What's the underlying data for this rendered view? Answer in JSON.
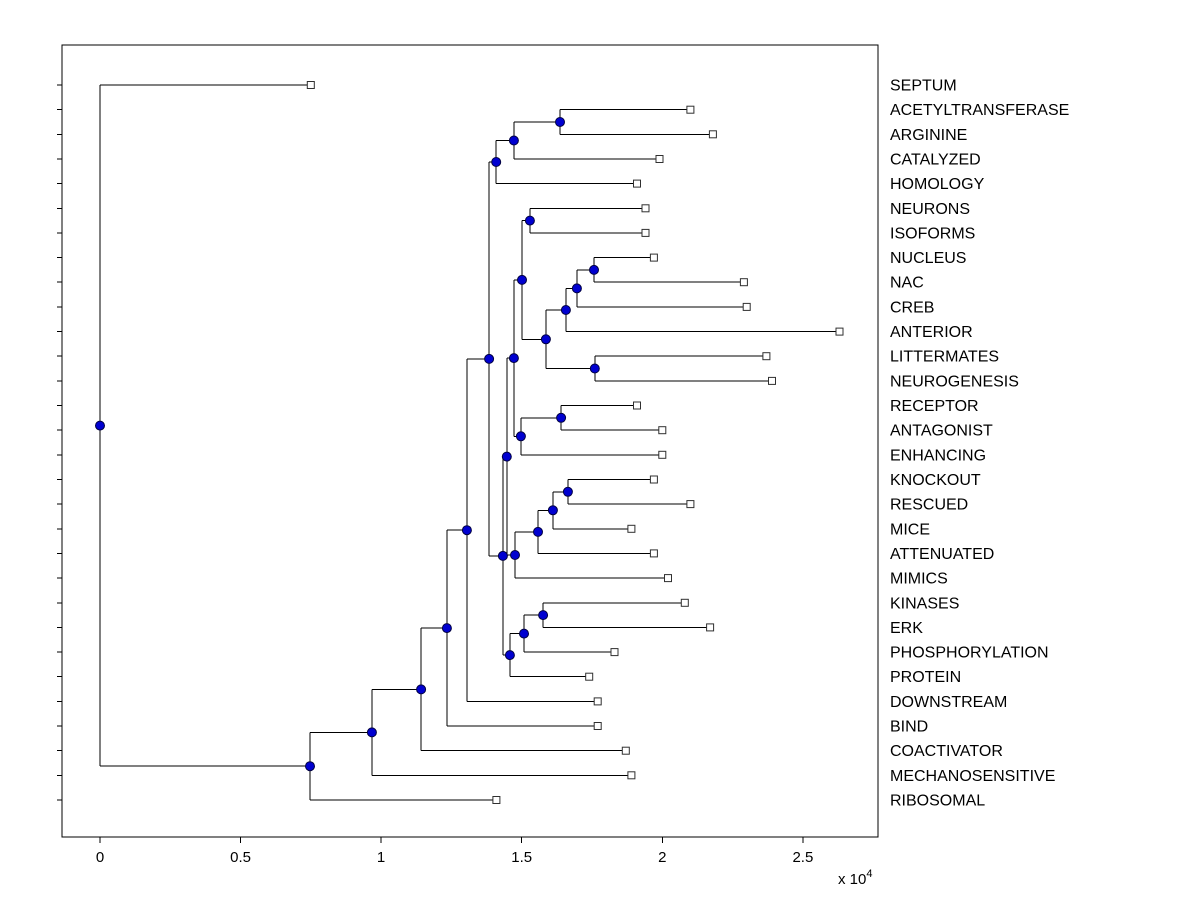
{
  "figure": {
    "background": "#ffffff",
    "border_color": "#000000",
    "line_color": "#000000",
    "node_marker": {
      "shape": "circle",
      "fill": "#0000d0",
      "edge": "#000040",
      "radius": 4.5
    },
    "leaf_marker": {
      "shape": "square",
      "fill": "#ffffff",
      "edge": "#303030",
      "size": 7
    }
  },
  "x_axis": {
    "tick_values": [
      0,
      0.5,
      1,
      1.5,
      2,
      2.5
    ],
    "tick_labels": [
      "0",
      "0.5",
      "1",
      "1.5",
      "2",
      "2.5"
    ],
    "multiplier_prefix": "x 10",
    "multiplier_exponent": "4",
    "range": [
      -0.135,
      2.767
    ]
  },
  "chart_data": {
    "type": "dendrogram",
    "orientation": "root-left-labels-right",
    "value_unit_multiplier": 10000,
    "title": "",
    "xlabel": "x 10^4",
    "leaf_labels_top_to_bottom": [
      "SEPTUM",
      "ACETYLTRANSFERASE",
      "ARGININE",
      "CATALYZED",
      "HOMOLOGY",
      "NEURONS",
      "ISOFORMS",
      "NUCLEUS",
      "NAC",
      "CREB",
      "ANTERIOR",
      "LITTERMATES",
      "NEUROGENESIS",
      "RECEPTOR",
      "ANTAGONIST",
      "ENHANCING",
      "KNOCKOUT",
      "RESCUED",
      "MICE",
      "ATTENUATED",
      "MIMICS",
      "KINASES",
      "ERK",
      "PHOSPHORYLATION",
      "PROTEIN",
      "DOWNSTREAM",
      "BIND",
      "COACTIVATOR",
      "MECHANOSENSITIVE",
      "RIBOSOMAL"
    ],
    "leaves": [
      {
        "label": "SEPTUM",
        "tip": 0.75
      },
      {
        "label": "ACETYLTRANSFERASE",
        "tip": 2.1
      },
      {
        "label": "ARGININE",
        "tip": 2.18
      },
      {
        "label": "CATALYZED",
        "tip": 1.99
      },
      {
        "label": "HOMOLOGY",
        "tip": 1.91
      },
      {
        "label": "NEURONS",
        "tip": 1.94
      },
      {
        "label": "ISOFORMS",
        "tip": 1.94
      },
      {
        "label": "NUCLEUS",
        "tip": 1.97
      },
      {
        "label": "NAC",
        "tip": 2.29
      },
      {
        "label": "CREB",
        "tip": 2.3
      },
      {
        "label": "ANTERIOR",
        "tip": 2.63
      },
      {
        "label": "LITTERMATES",
        "tip": 2.37
      },
      {
        "label": "NEUROGENESIS",
        "tip": 2.39
      },
      {
        "label": "RECEPTOR",
        "tip": 1.91
      },
      {
        "label": "ANTAGONIST",
        "tip": 2.0
      },
      {
        "label": "ENHANCING",
        "tip": 2.0
      },
      {
        "label": "KNOCKOUT",
        "tip": 1.97
      },
      {
        "label": "RESCUED",
        "tip": 2.1
      },
      {
        "label": "MICE",
        "tip": 1.89
      },
      {
        "label": "ATTENUATED",
        "tip": 1.97
      },
      {
        "label": "MIMICS",
        "tip": 2.02
      },
      {
        "label": "KINASES",
        "tip": 2.08
      },
      {
        "label": "ERK",
        "tip": 2.17
      },
      {
        "label": "PHOSPHORYLATION",
        "tip": 1.83
      },
      {
        "label": "PROTEIN",
        "tip": 1.74
      },
      {
        "label": "DOWNSTREAM",
        "tip": 1.77
      },
      {
        "label": "BIND",
        "tip": 1.77
      },
      {
        "label": "COACTIVATOR",
        "tip": 1.87
      },
      {
        "label": "MECHANOSENSITIVE",
        "tip": 1.89
      },
      {
        "label": "RIBOSOMAL",
        "tip": 1.41
      }
    ],
    "tree": {
      "h": 0.0,
      "c": [
        {
          "leaf": "SEPTUM"
        },
        {
          "h": 0.747,
          "c": [
            {
              "h": 0.967,
              "c": [
                {
                  "h": 1.142,
                  "c": [
                    {
                      "h": 1.234,
                      "c": [
                        {
                          "h": 1.305,
                          "c": [
                            {
                              "h": 1.384,
                              "c": [
                                {
                                  "h": 1.409,
                                  "c": [
                                    {
                                      "h": 1.472,
                                      "c": [
                                        {
                                          "h": 1.636,
                                          "c": [
                                            {
                                              "leaf": "ACETYLTRANSFERASE"
                                            },
                                            {
                                              "leaf": "ARGININE"
                                            }
                                          ]
                                        },
                                        {
                                          "leaf": "CATALYZED"
                                        }
                                      ]
                                    },
                                    {
                                      "leaf": "HOMOLOGY"
                                    }
                                  ]
                                },
                                {
                                  "h": 1.433,
                                  "c": [
                                    {
                                      "h": 1.447,
                                      "c": [
                                        {
                                          "h": 1.472,
                                          "c": [
                                            {
                                              "h": 1.501,
                                              "c": [
                                                {
                                                  "h": 1.529,
                                                  "c": [
                                                    {
                                                      "leaf": "NEURONS"
                                                    },
                                                    {
                                                      "leaf": "ISOFORMS"
                                                    }
                                                  ]
                                                },
                                                {
                                                  "h": 1.586,
                                                  "c": [
                                                    {
                                                      "h": 1.657,
                                                      "c": [
                                                        {
                                                          "h": 1.696,
                                                          "c": [
                                                            {
                                                              "h": 1.757,
                                                              "c": [
                                                                {
                                                                  "leaf": "NUCLEUS"
                                                                },
                                                                {
                                                                  "leaf": "NAC"
                                                                }
                                                              ]
                                                            },
                                                            {
                                                              "leaf": "CREB"
                                                            }
                                                          ]
                                                        },
                                                        {
                                                          "leaf": "ANTERIOR"
                                                        }
                                                      ]
                                                    },
                                                    {
                                                      "h": 1.76,
                                                      "c": [
                                                        {
                                                          "leaf": "LITTERMATES"
                                                        },
                                                        {
                                                          "leaf": "NEUROGENESIS"
                                                        }
                                                      ]
                                                    }
                                                  ]
                                                }
                                              ]
                                            },
                                            {
                                              "h": 1.497,
                                              "c": [
                                                {
                                                  "h": 1.64,
                                                  "c": [
                                                    {
                                                      "leaf": "RECEPTOR"
                                                    },
                                                    {
                                                      "leaf": "ANTAGONIST"
                                                    }
                                                  ]
                                                },
                                                {
                                                  "leaf": "ENHANCING"
                                                }
                                              ]
                                            }
                                          ]
                                        },
                                        {
                                          "h": 1.476,
                                          "c": [
                                            {
                                              "h": 1.558,
                                              "c": [
                                                {
                                                  "h": 1.611,
                                                  "c": [
                                                    {
                                                      "h": 1.664,
                                                      "c": [
                                                        {
                                                          "leaf": "KNOCKOUT"
                                                        },
                                                        {
                                                          "leaf": "RESCUED"
                                                        }
                                                      ]
                                                    },
                                                    {
                                                      "leaf": "MICE"
                                                    }
                                                  ]
                                                },
                                                {
                                                  "leaf": "ATTENUATED"
                                                }
                                              ]
                                            },
                                            {
                                              "leaf": "MIMICS"
                                            }
                                          ]
                                        }
                                      ]
                                    },
                                    {
                                      "h": 1.458,
                                      "c": [
                                        {
                                          "h": 1.508,
                                          "c": [
                                            {
                                              "h": 1.576,
                                              "c": [
                                                {
                                                  "leaf": "KINASES"
                                                },
                                                {
                                                  "leaf": "ERK"
                                                }
                                              ]
                                            },
                                            {
                                              "leaf": "PHOSPHORYLATION"
                                            }
                                          ]
                                        },
                                        {
                                          "leaf": "PROTEIN"
                                        }
                                      ]
                                    }
                                  ]
                                }
                              ]
                            },
                            {
                              "leaf": "DOWNSTREAM"
                            }
                          ]
                        },
                        {
                          "leaf": "BIND"
                        }
                      ]
                    },
                    {
                      "leaf": "COACTIVATOR"
                    }
                  ]
                },
                {
                  "leaf": "MECHANOSENSITIVE"
                }
              ]
            },
            {
              "leaf": "RIBOSOMAL"
            }
          ]
        }
      ]
    }
  }
}
